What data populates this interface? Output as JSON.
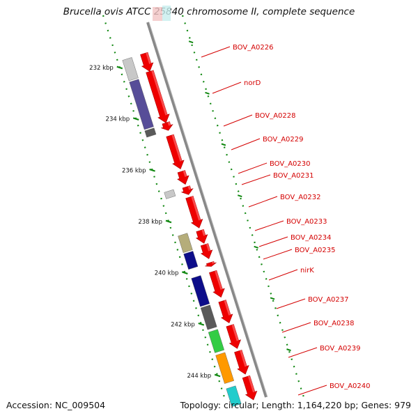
{
  "title": "Brucella ovis ATCC 25840 chromosome II, complete sequence",
  "accession": "Accession: NC_009504",
  "topology": "Topology: circular; Length: 1,164,220 bp; Genes: 979",
  "colors": {
    "backbone": "#888888",
    "forward_gene": "#ee0000",
    "tick": "#118811",
    "label": "#d40000"
  },
  "kbp_labels": [
    "232 kbp",
    "234 kbp",
    "236 kbp",
    "238 kbp",
    "240 kbp",
    "242 kbp",
    "244 kbp"
  ],
  "gene_labels": [
    "BOV_A0226",
    "norD",
    "BOV_A0228",
    "BOV_A0229",
    "BOV_A0230",
    "BOV_A0231",
    "BOV_A0232",
    "BOV_A0233",
    "BOV_A0234",
    "BOV_A0235",
    "nirK",
    "BOV_A0237",
    "BOV_A0238",
    "BOV_A0239",
    "BOV_A0240"
  ],
  "forward_genes": [
    {
      "from": 231.3,
      "to": 232.0
    },
    {
      "from": 232.0,
      "to": 234.0
    },
    {
      "from": 234.0,
      "to": 234.3
    },
    {
      "from": 234.5,
      "to": 235.8
    },
    {
      "from": 235.9,
      "to": 236.4
    },
    {
      "from": 236.5,
      "to": 236.8
    },
    {
      "from": 236.9,
      "to": 238.1
    },
    {
      "from": 238.2,
      "to": 238.7
    },
    {
      "from": 238.75,
      "to": 239.3
    },
    {
      "from": 239.45,
      "to": 239.6
    },
    {
      "from": 239.8,
      "to": 240.8
    },
    {
      "from": 240.95,
      "to": 241.8
    },
    {
      "from": 241.9,
      "to": 242.8
    },
    {
      "from": 242.9,
      "to": 243.8
    },
    {
      "from": 243.9,
      "to": 244.8
    }
  ],
  "feature_genes": [
    {
      "from": 231.3,
      "to": 232.1,
      "color": "#c8c8c8"
    },
    {
      "from": 232.15,
      "to": 234.0,
      "color": "#574d98"
    },
    {
      "from": 234.05,
      "to": 234.3,
      "color": "#5a5a5a"
    },
    {
      "from": 236.45,
      "to": 236.7,
      "color": "#c8c8c8"
    },
    {
      "from": 238.15,
      "to": 238.8,
      "color": "#b5ad7a"
    },
    {
      "from": 238.85,
      "to": 239.45,
      "color": "#0d0d8a"
    },
    {
      "from": 239.8,
      "to": 240.9,
      "color": "#0d0d8a"
    },
    {
      "from": 240.95,
      "to": 241.8,
      "color": "#5a5a5a"
    },
    {
      "from": 241.9,
      "to": 242.7,
      "color": "#33cc44"
    },
    {
      "from": 242.8,
      "to": 243.9,
      "color": "#ff9900"
    },
    {
      "from": 244.1,
      "to": 244.8,
      "color": "#22cccc"
    }
  ]
}
